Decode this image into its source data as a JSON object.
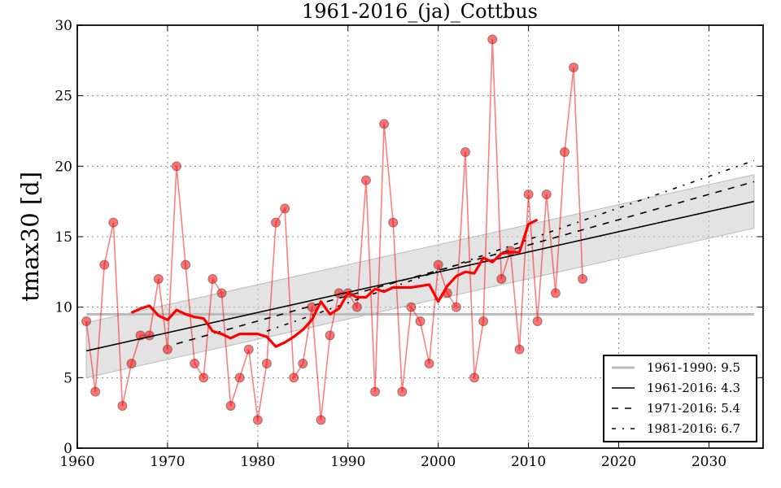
{
  "chart_data": {
    "type": "line",
    "title": "1961-2016_(ja)_Cottbus",
    "xlabel": "",
    "ylabel": "tmax30 [d]",
    "xlim": [
      1960,
      2036
    ],
    "ylim": [
      0,
      30
    ],
    "xticks": [
      "1960",
      "1970",
      "1980",
      "1990",
      "2000",
      "2010",
      "2020",
      "2030"
    ],
    "yticks": [
      "0",
      "5",
      "10",
      "15",
      "20",
      "25",
      "30"
    ],
    "grid": true,
    "legend_position": "bottom-right",
    "observations": {
      "name": "tmax30",
      "color": "#ff0000",
      "x": [
        1961,
        1962,
        1963,
        1964,
        1965,
        1966,
        1967,
        1968,
        1969,
        1970,
        1971,
        1972,
        1973,
        1974,
        1975,
        1976,
        1977,
        1978,
        1979,
        1980,
        1981,
        1982,
        1983,
        1984,
        1985,
        1986,
        1987,
        1988,
        1989,
        1990,
        1991,
        1992,
        1993,
        1994,
        1995,
        1996,
        1997,
        1998,
        1999,
        2000,
        2001,
        2002,
        2003,
        2004,
        2005,
        2006,
        2007,
        2008,
        2009,
        2010,
        2011,
        2012,
        2013,
        2014,
        2015,
        2016
      ],
      "y": [
        9,
        4,
        13,
        16,
        3,
        6,
        8,
        8,
        12,
        7,
        20,
        13,
        6,
        5,
        12,
        11,
        3,
        5,
        7,
        2,
        6,
        16,
        17,
        5,
        6,
        10,
        2,
        8,
        11,
        11,
        10,
        19,
        4,
        23,
        16,
        4,
        10,
        9,
        6,
        13,
        11,
        10,
        21,
        5,
        9,
        29,
        12,
        14,
        7,
        18,
        9,
        18,
        11,
        21,
        27,
        12
      ]
    },
    "running_mean": {
      "name": "running mean",
      "color": "#ff0000",
      "x": [
        1966,
        1967,
        1968,
        1969,
        1970,
        1971,
        1972,
        1973,
        1974,
        1975,
        1976,
        1977,
        1978,
        1979,
        1980,
        1981,
        1982,
        1983,
        1984,
        1985,
        1986,
        1987,
        1988,
        1989,
        1990,
        1991,
        1992,
        1993,
        1994,
        1995,
        1996,
        1997,
        1998,
        1999,
        2000,
        2001,
        2002,
        2003,
        2004,
        2005,
        2006,
        2007,
        2008,
        2009,
        2010,
        2011
      ],
      "y": [
        9.6,
        9.9,
        10.1,
        9.4,
        9.1,
        9.8,
        9.5,
        9.3,
        9.2,
        8.3,
        8.1,
        7.8,
        8.1,
        8.1,
        8.1,
        7.9,
        7.2,
        7.5,
        7.9,
        8.4,
        9.1,
        10.4,
        9.5,
        9.9,
        11.0,
        10.7,
        10.7,
        11.3,
        11.1,
        11.4,
        11.4,
        11.4,
        11.5,
        11.6,
        10.4,
        11.5,
        12.2,
        12.5,
        12.4,
        13.5,
        13.2,
        13.8,
        13.9,
        13.9,
        15.9,
        16.2
      ]
    },
    "legend": [
      {
        "label": "1961-1990: 9.5",
        "style": "mean",
        "color": "#bbbbbb"
      },
      {
        "label": "1961-2016: 4.3",
        "style": "solid",
        "color": "#000000"
      },
      {
        "label": "1971-2016: 5.4",
        "style": "dashed",
        "color": "#000000"
      },
      {
        "label": "1981-2016: 6.7",
        "style": "dashdot",
        "color": "#000000"
      }
    ],
    "reference_mean": {
      "x": [
        1961,
        2035
      ],
      "y": [
        9.5,
        9.5
      ]
    },
    "trends": [
      {
        "name": "1961-2016",
        "style": "solid",
        "x": [
          1961,
          2035
        ],
        "y": [
          6.9,
          17.5
        ]
      },
      {
        "name": "1971-2016",
        "style": "dashed",
        "x": [
          1971,
          2035
        ],
        "y": [
          7.4,
          18.9
        ]
      },
      {
        "name": "1981-2016",
        "style": "dashdot",
        "x": [
          1981,
          2035
        ],
        "y": [
          8.3,
          20.4
        ]
      }
    ],
    "confidence_band": {
      "x": [
        1961,
        2035
      ],
      "upper": [
        8.9,
        19.4
      ],
      "lower": [
        5.0,
        15.6
      ]
    }
  }
}
